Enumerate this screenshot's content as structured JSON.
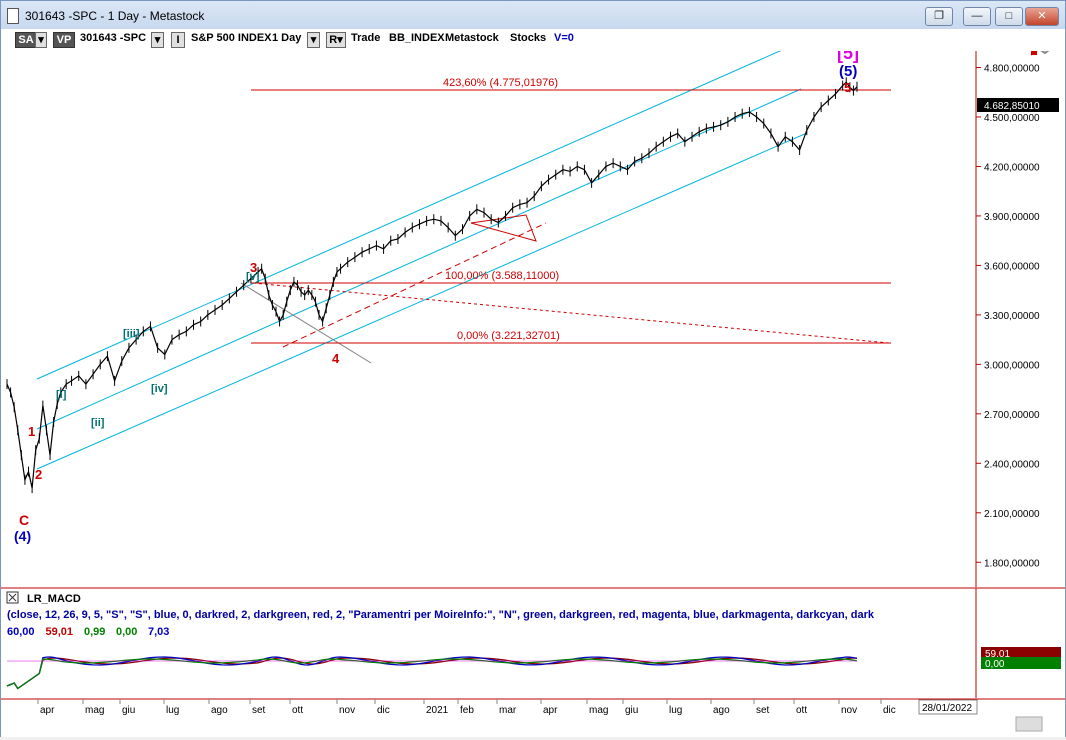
{
  "window": {
    "title": "301643 -SPC - 1 Day - Metastock",
    "buttons": {
      "restore": "❐",
      "minimize": "—",
      "maximize": "□",
      "close": "✕"
    }
  },
  "toolbar": {
    "sa": "SA",
    "vp": "VP",
    "symbol": "301643 -SPC",
    "i_box": "I",
    "instrument": "S&P 500 INDEX",
    "period": "1 Day",
    "r_box": "R",
    "mode": "Trade",
    "index_tag": "BB_INDEX",
    "source": "Metastock",
    "type": "Stocks",
    "v": "V=0"
  },
  "chart_data": [
    {
      "type": "line",
      "title": "",
      "subtitle": "",
      "xlabel": "",
      "ylabel": "",
      "ylim": [
        1650,
        4900
      ],
      "y_ticks": [
        "1.800,00000",
        "2.100,00000",
        "2.400,00000",
        "2.700,00000",
        "3.000,00000",
        "3.300,00000",
        "3.600,00000",
        "3.900,00000",
        "4.200,00000",
        "4.500,00000",
        "4.800,00000"
      ],
      "x_ticks": [
        "apr",
        "mag",
        "giu",
        "lug",
        "ago",
        "set",
        "ott",
        "nov",
        "dic",
        "2021",
        "feb",
        "mar",
        "apr",
        "mag",
        "giu",
        "lug",
        "ago",
        "set",
        "ott",
        "nov",
        "dic"
      ],
      "x_date_box": "28/01/2022",
      "last_price_label": "4.682,85010",
      "grid": false,
      "series": [
        {
          "values": [
            [
              0,
              2880
            ],
            [
              2,
              2830
            ],
            [
              4,
              2740
            ],
            [
              6,
              2600
            ],
            [
              8,
              2450
            ],
            [
              10,
              2300
            ],
            [
              12,
              2350
            ],
            [
              14,
              2250
            ],
            [
              16,
              2480
            ],
            [
              18,
              2550
            ],
            [
              20,
              2750
            ],
            [
              22,
              2600
            ],
            [
              24,
              2450
            ],
            [
              26,
              2650
            ],
            [
              28,
              2760
            ],
            [
              30,
              2830
            ],
            [
              33,
              2880
            ],
            [
              36,
              2900
            ],
            [
              40,
              2930
            ],
            [
              44,
              2880
            ],
            [
              48,
              2940
            ],
            [
              52,
              3000
            ],
            [
              56,
              3050
            ],
            [
              60,
              2900
            ],
            [
              64,
              3020
            ],
            [
              68,
              3100
            ],
            [
              72,
              3150
            ],
            [
              76,
              3200
            ],
            [
              80,
              3230
            ],
            [
              84,
              3100
            ],
            [
              88,
              3060
            ],
            [
              92,
              3150
            ],
            [
              96,
              3180
            ],
            [
              100,
              3200
            ],
            [
              104,
              3240
            ],
            [
              108,
              3260
            ],
            [
              112,
              3300
            ],
            [
              116,
              3330
            ],
            [
              120,
              3360
            ],
            [
              124,
              3400
            ],
            [
              128,
              3440
            ],
            [
              132,
              3480
            ],
            [
              136,
              3520
            ],
            [
              140,
              3560
            ],
            [
              142,
              3580
            ],
            [
              144,
              3520
            ],
            [
              146,
              3420
            ],
            [
              148,
              3360
            ],
            [
              150,
              3320
            ],
            [
              152,
              3260
            ],
            [
              154,
              3300
            ],
            [
              156,
              3380
            ],
            [
              158,
              3450
            ],
            [
              160,
              3500
            ],
            [
              162,
              3480
            ],
            [
              164,
              3440
            ],
            [
              166,
              3420
            ],
            [
              168,
              3450
            ],
            [
              170,
              3420
            ],
            [
              172,
              3380
            ],
            [
              174,
              3300
            ],
            [
              176,
              3260
            ],
            [
              178,
              3340
            ],
            [
              180,
              3420
            ],
            [
              182,
              3500
            ],
            [
              184,
              3560
            ],
            [
              186,
              3580
            ],
            [
              190,
              3620
            ],
            [
              194,
              3650
            ],
            [
              198,
              3680
            ],
            [
              202,
              3700
            ],
            [
              206,
              3720
            ],
            [
              210,
              3700
            ],
            [
              214,
              3750
            ],
            [
              218,
              3760
            ],
            [
              222,
              3800
            ],
            [
              226,
              3830
            ],
            [
              230,
              3850
            ],
            [
              234,
              3870
            ],
            [
              238,
              3880
            ],
            [
              242,
              3870
            ],
            [
              246,
              3830
            ],
            [
              250,
              3780
            ],
            [
              254,
              3820
            ],
            [
              258,
              3900
            ],
            [
              262,
              3940
            ],
            [
              266,
              3920
            ],
            [
              270,
              3880
            ],
            [
              274,
              3860
            ],
            [
              278,
              3900
            ],
            [
              282,
              3950
            ],
            [
              286,
              3970
            ],
            [
              290,
              3980
            ],
            [
              294,
              4020
            ],
            [
              298,
              4080
            ],
            [
              302,
              4120
            ],
            [
              306,
              4150
            ],
            [
              310,
              4180
            ],
            [
              314,
              4170
            ],
            [
              318,
              4200
            ],
            [
              322,
              4180
            ],
            [
              326,
              4100
            ],
            [
              330,
              4150
            ],
            [
              334,
              4200
            ],
            [
              338,
              4220
            ],
            [
              342,
              4200
            ],
            [
              346,
              4180
            ],
            [
              350,
              4230
            ],
            [
              354,
              4250
            ],
            [
              358,
              4280
            ],
            [
              362,
              4320
            ],
            [
              366,
              4350
            ],
            [
              370,
              4380
            ],
            [
              374,
              4400
            ],
            [
              378,
              4350
            ],
            [
              382,
              4380
            ],
            [
              386,
              4410
            ],
            [
              390,
              4430
            ],
            [
              394,
              4440
            ],
            [
              398,
              4450
            ],
            [
              402,
              4470
            ],
            [
              406,
              4500
            ],
            [
              410,
              4520
            ],
            [
              414,
              4530
            ],
            [
              418,
              4500
            ],
            [
              422,
              4460
            ],
            [
              426,
              4400
            ],
            [
              430,
              4320
            ],
            [
              434,
              4380
            ],
            [
              438,
              4350
            ],
            [
              442,
              4300
            ],
            [
              446,
              4420
            ],
            [
              450,
              4500
            ],
            [
              454,
              4560
            ],
            [
              458,
              4600
            ],
            [
              462,
              4640
            ],
            [
              466,
              4690
            ],
            [
              468,
              4710
            ],
            [
              470,
              4680
            ],
            [
              472,
              4660
            ],
            [
              474,
              4683
            ]
          ]
        }
      ],
      "annotations": {
        "fib_423": "423,60% (4.775,01976)",
        "fib_100": "100,00% (3.588,11000)",
        "fib_0": "0,00% (3.221,32701)",
        "wave_C": "C",
        "wave_4_blue": "(4)",
        "wave_1": "1",
        "wave_2": "2",
        "wave_3": "3",
        "wave_4": "4",
        "wave_5": "5",
        "wave_5_blue": "(5)",
        "wave_5_box": "[5]",
        "sub_i": "[i]",
        "sub_ii": "[ii]",
        "sub_iii": "[iii]",
        "sub_iv": "[iv]",
        "sub_v": "[v]"
      },
      "colors": {
        "price": "#000000",
        "channel": "#00b4e0",
        "fib": "#d00000",
        "wave_red": "#d00000",
        "wave_blue": "#0000c0",
        "wave_magenta": "#e000e0",
        "sub_wave": "#007070"
      }
    },
    {
      "type": "line",
      "title": "LR_MACD",
      "params": "(close, 12, 26, 9, 5, \"S\", \"S\", blue, 0, darkred, 2, darkgreen, red, 2, \"Paramentri per MoireInfo:\", \"N\", green, darkgreen, red, magenta, blue, darkmagenta, darkcyan, dark",
      "values_row": [
        {
          "text": "60,00",
          "color": "#0000c0"
        },
        {
          "text": "59,01",
          "color": "#c00000"
        },
        {
          "text": "0,99",
          "color": "#008000"
        },
        {
          "text": "0,00",
          "color": "#008000"
        },
        {
          "text": "7,03",
          "color": "#0000c0"
        }
      ],
      "right_labels": [
        {
          "text": "59,01",
          "color": "#8b0000"
        },
        {
          "text": "0,00",
          "color": "#008000"
        }
      ]
    }
  ]
}
